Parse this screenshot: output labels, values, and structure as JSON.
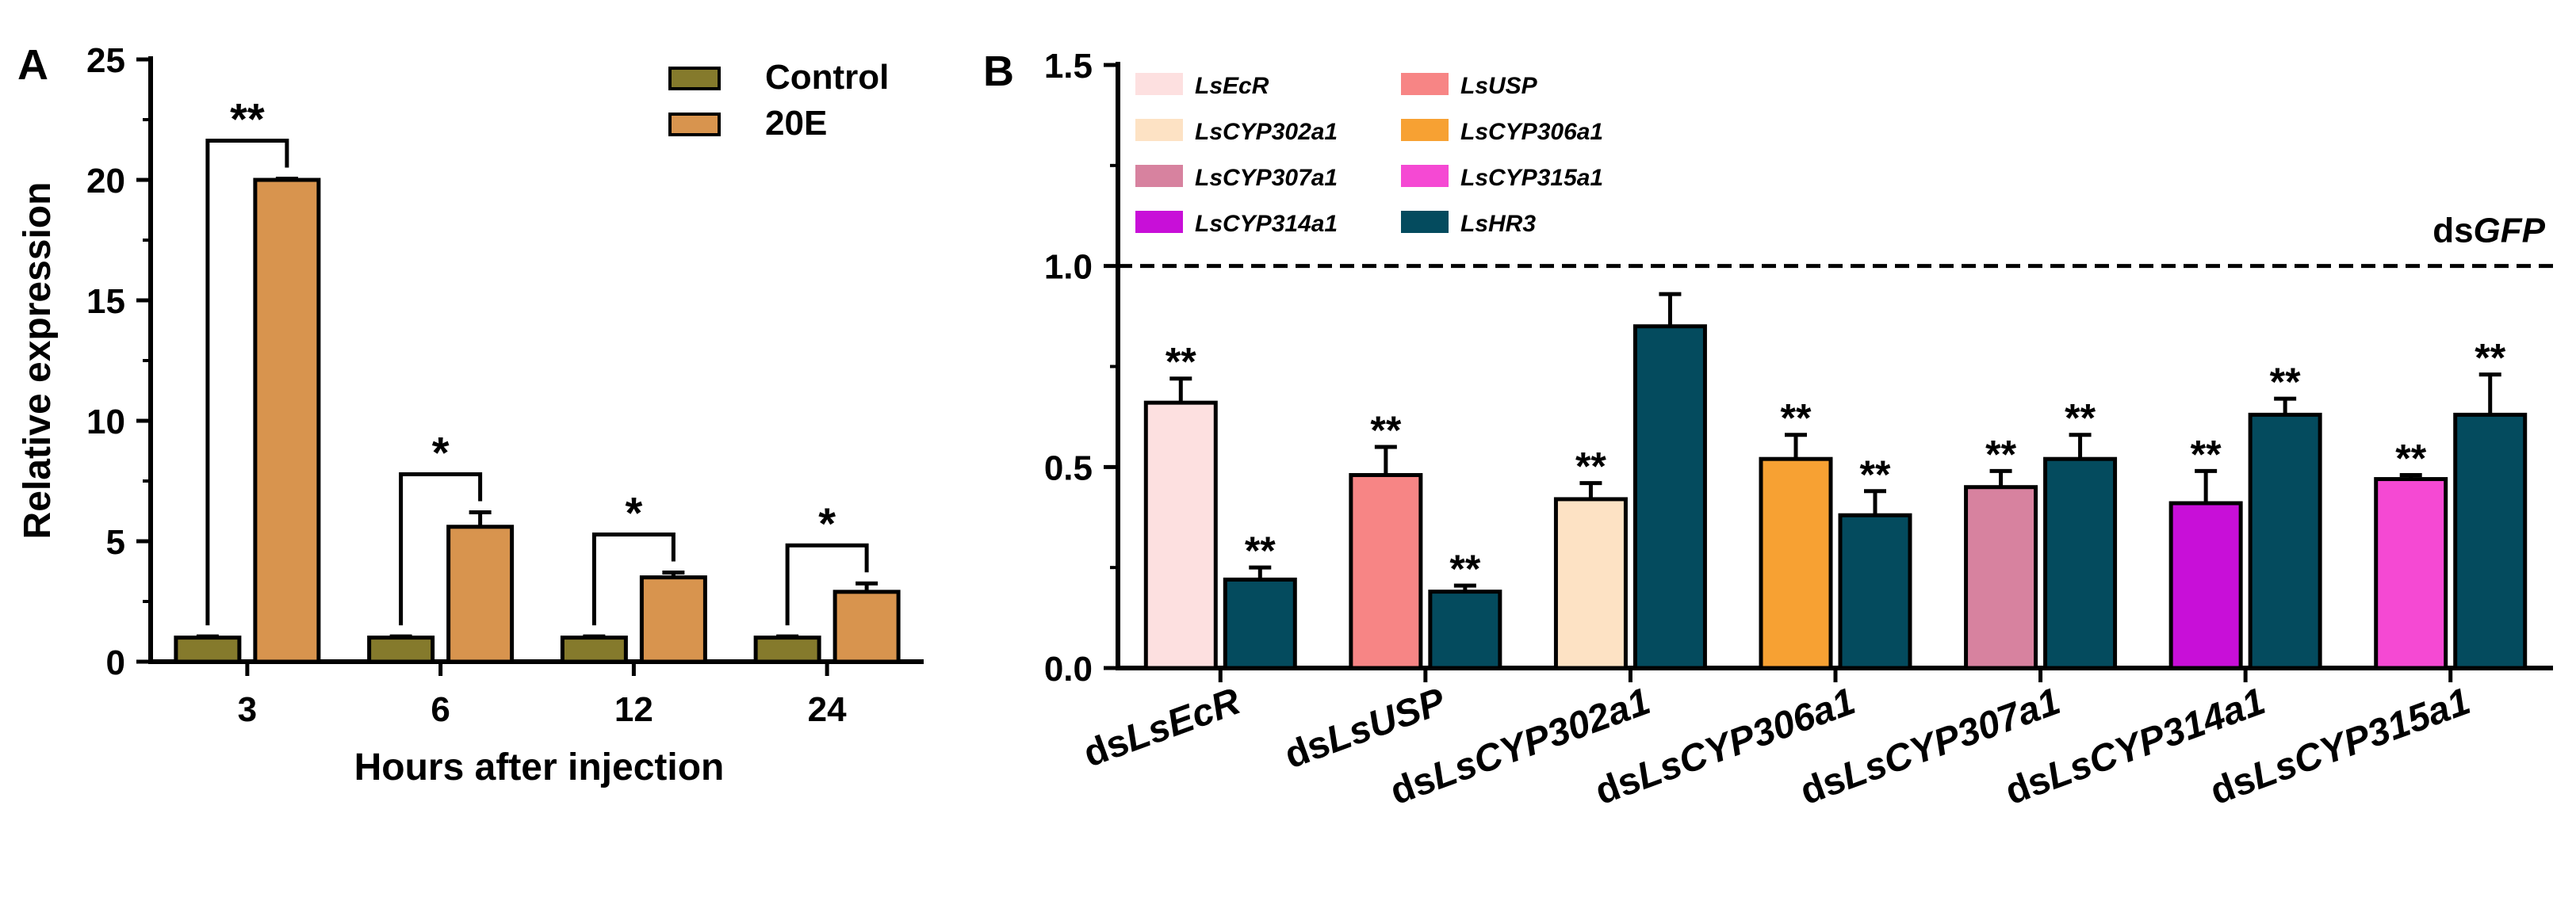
{
  "chart_data": [
    {
      "panel_label": "A",
      "type": "bar",
      "xlabel": "Hours after injection",
      "ylabel": "Relative expression",
      "ylim": [
        0,
        25
      ],
      "yticks": [
        "0",
        "5",
        "10",
        "15",
        "20",
        "25"
      ],
      "categories": [
        "3",
        "6",
        "12",
        "24"
      ],
      "legend_position": "top-right",
      "series": [
        {
          "name": "Control",
          "color": "#857a2c",
          "values": [
            1.0,
            1.0,
            1.0,
            1.0
          ],
          "errors": [
            0.05,
            0.05,
            0.05,
            0.05
          ]
        },
        {
          "name": "20E",
          "color": "#d8944e",
          "values": [
            20.0,
            5.6,
            3.5,
            2.9
          ],
          "errors": [
            0.05,
            0.6,
            0.2,
            0.35
          ]
        }
      ],
      "significance": [
        "**",
        "*",
        "*",
        "*"
      ]
    },
    {
      "panel_label": "B",
      "type": "bar",
      "xlabel": "",
      "ylabel": "",
      "ylim": [
        0,
        1.5
      ],
      "yticks": [
        "0.0",
        "0.5",
        "1.0",
        "1.5"
      ],
      "reference_line": {
        "value": 1.0,
        "label_prefix": "ds",
        "label_gene": "GFP"
      },
      "legend_position": "top-left",
      "legend": [
        {
          "name": "LsEcR",
          "color": "#fde0e0"
        },
        {
          "name": "LsUSP",
          "color": "#f78585"
        },
        {
          "name": "LsCYP302a1",
          "color": "#fde2c4"
        },
        {
          "name": "LsCYP306a1",
          "color": "#f7a133"
        },
        {
          "name": "LsCYP307a1",
          "color": "#d7829f"
        },
        {
          "name": "LsCYP315a1",
          "color": "#f549d3"
        },
        {
          "name": "LsCYP314a1",
          "color": "#c80fd8"
        },
        {
          "name": "LsHR3",
          "color": "#044b5e"
        }
      ],
      "groups": [
        {
          "prefix": "ds",
          "gene": "LsEcR",
          "target_value": 0.66,
          "target_error": 0.06,
          "target_color": "#fde0e0",
          "hr3_value": 0.22,
          "hr3_error": 0.03,
          "target_sig": "**",
          "hr3_sig": "**"
        },
        {
          "prefix": "ds",
          "gene": "LsUSP",
          "target_value": 0.48,
          "target_error": 0.07,
          "target_color": "#f78585",
          "hr3_value": 0.19,
          "hr3_error": 0.015,
          "target_sig": "**",
          "hr3_sig": "**"
        },
        {
          "prefix": "ds",
          "gene": "LsCYP302a1",
          "target_value": 0.42,
          "target_error": 0.04,
          "target_color": "#fde2c4",
          "hr3_value": 0.85,
          "hr3_error": 0.08,
          "target_sig": "**",
          "hr3_sig": ""
        },
        {
          "prefix": "ds",
          "gene": "LsCYP306a1",
          "target_value": 0.52,
          "target_error": 0.06,
          "target_color": "#f7a133",
          "hr3_value": 0.38,
          "hr3_error": 0.06,
          "target_sig": "**",
          "hr3_sig": "**"
        },
        {
          "prefix": "ds",
          "gene": "LsCYP307a1",
          "target_value": 0.45,
          "target_error": 0.04,
          "target_color": "#d7829f",
          "hr3_value": 0.52,
          "hr3_error": 0.06,
          "target_sig": "**",
          "hr3_sig": "**"
        },
        {
          "prefix": "ds",
          "gene": "LsCYP314a1",
          "target_value": 0.41,
          "target_error": 0.08,
          "target_color": "#c80fd8",
          "hr3_value": 0.63,
          "hr3_error": 0.04,
          "target_sig": "**",
          "hr3_sig": "**"
        },
        {
          "prefix": "ds",
          "gene": "LsCYP315a1",
          "target_value": 0.47,
          "target_error": 0.01,
          "target_color": "#f549d3",
          "hr3_value": 0.63,
          "hr3_error": 0.1,
          "target_sig": "**",
          "hr3_sig": "**"
        }
      ],
      "hr3_color": "#044b5e"
    }
  ]
}
